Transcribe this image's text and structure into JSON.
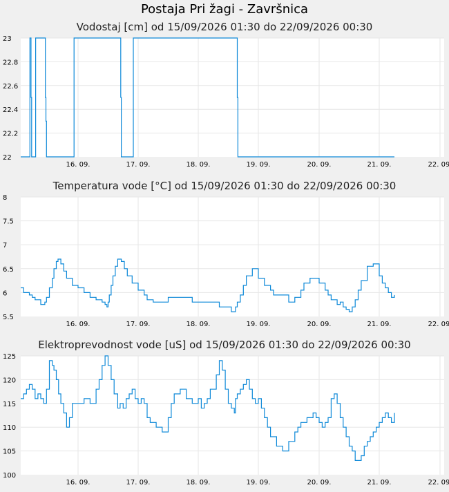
{
  "page_title": "Postaja Pri žagi - Završnica",
  "colors": {
    "series": "#0c88d8",
    "background": "#f0f0f0",
    "plot": "#ffffff",
    "grid": "#e6e6e6"
  },
  "chart_data": [
    {
      "type": "line",
      "title": "Vodostaj [cm] od 15/09/2026 01:30 do 22/09/2026 00:30",
      "x_range": [
        15.0,
        22.0
      ],
      "x_ticks": [
        16,
        17,
        18,
        19,
        20,
        21,
        22
      ],
      "x_tick_labels": [
        "16. 09.",
        "17. 09.",
        "18. 09.",
        "19. 09.",
        "20. 09.",
        "21. 09.",
        "22. 09."
      ],
      "ylim": [
        22,
        23
      ],
      "y_ticks": [
        22,
        22.2,
        22.4,
        22.6,
        22.8,
        23
      ],
      "y_tick_labels": [
        "22",
        "22.2",
        "22.4",
        "22.6",
        "22.8",
        "23"
      ],
      "grid": true,
      "series": [
        {
          "x": [
            15.0,
            15.15,
            15.16,
            15.17,
            15.18,
            15.19,
            15.2,
            15.25,
            15.26,
            15.27,
            15.4,
            15.41,
            15.43,
            15.44,
            15.45,
            15.5,
            15.92,
            15.93,
            15.95,
            15.96,
            16.7,
            16.71,
            16.72,
            16.9,
            16.91,
            16.92,
            18.62,
            18.63,
            18.65,
            18.66,
            18.67,
            18.7,
            21.25
          ],
          "y": [
            22,
            22,
            23,
            23,
            22.5,
            22,
            22,
            22,
            23,
            23,
            23,
            23,
            22.5,
            22.3,
            22,
            22,
            22,
            23,
            23,
            23,
            23,
            22.5,
            22,
            22,
            22,
            23,
            23,
            23,
            22.5,
            22,
            22,
            22,
            22
          ]
        }
      ]
    },
    {
      "type": "line",
      "title": "Temperatura vode [°C] od 15/09/2026 01:30 do 22/09/2026 00:30",
      "x_range": [
        15.0,
        22.0
      ],
      "x_ticks": [
        16,
        17,
        18,
        19,
        20,
        21,
        22
      ],
      "x_tick_labels": [
        "16. 09.",
        "17. 09.",
        "18. 09.",
        "19. 09.",
        "20. 09.",
        "21. 09.",
        "22. 09."
      ],
      "ylim": [
        5.5,
        8
      ],
      "y_ticks": [
        5.5,
        6,
        6.5,
        7,
        7.5,
        8
      ],
      "y_tick_labels": [
        "5.5",
        "6",
        "6.5",
        "7",
        "7.5",
        "8"
      ],
      "grid": true,
      "series": [
        {
          "x": [
            15.0,
            15.05,
            15.1,
            15.15,
            15.2,
            15.25,
            15.3,
            15.35,
            15.42,
            15.45,
            15.5,
            15.55,
            15.58,
            15.62,
            15.65,
            15.7,
            15.75,
            15.8,
            15.9,
            16.0,
            16.1,
            16.2,
            16.3,
            16.4,
            16.45,
            16.48,
            16.5,
            16.52,
            16.55,
            16.58,
            16.62,
            16.66,
            16.72,
            16.77,
            16.82,
            16.9,
            17.0,
            17.1,
            17.15,
            17.25,
            17.45,
            17.5,
            17.85,
            17.9,
            18.3,
            18.35,
            18.5,
            18.55,
            18.6,
            18.62,
            18.65,
            18.7,
            18.75,
            18.8,
            18.9,
            19.0,
            19.1,
            19.2,
            19.25,
            19.5,
            19.55,
            19.6,
            19.7,
            19.75,
            19.85,
            19.9,
            20.0,
            20.1,
            20.15,
            20.2,
            20.3,
            20.35,
            20.4,
            20.45,
            20.5,
            20.55,
            20.6,
            20.65,
            20.7,
            20.8,
            20.9,
            21.0,
            21.05,
            21.1,
            21.15,
            21.2,
            21.25
          ],
          "y": [
            6.1,
            6.0,
            6.0,
            5.95,
            5.9,
            5.85,
            5.85,
            5.75,
            5.8,
            5.9,
            6.1,
            6.3,
            6.5,
            6.65,
            6.7,
            6.6,
            6.45,
            6.3,
            6.15,
            6.1,
            6.0,
            5.9,
            5.85,
            5.8,
            5.75,
            5.7,
            5.8,
            5.95,
            6.15,
            6.35,
            6.55,
            6.7,
            6.65,
            6.5,
            6.35,
            6.2,
            6.05,
            5.95,
            5.85,
            5.8,
            5.8,
            5.9,
            5.9,
            5.8,
            5.8,
            5.7,
            5.7,
            5.6,
            5.6,
            5.7,
            5.8,
            5.95,
            6.15,
            6.35,
            6.5,
            6.3,
            6.15,
            6.05,
            5.95,
            5.8,
            5.8,
            5.9,
            6.05,
            6.2,
            6.3,
            6.3,
            6.2,
            6.05,
            5.95,
            5.85,
            5.75,
            5.8,
            5.7,
            5.65,
            5.6,
            5.7,
            5.85,
            6.05,
            6.25,
            6.55,
            6.6,
            6.35,
            6.2,
            6.1,
            6.0,
            5.9,
            5.95
          ]
        }
      ]
    },
    {
      "type": "line",
      "title": "Elektroprevodnost vode [uS] od 15/09/2026 01:30 do 22/09/2026 00:30",
      "x_range": [
        15.0,
        22.0
      ],
      "x_ticks": [
        16,
        17,
        18,
        19,
        20,
        21,
        22
      ],
      "x_tick_labels": [
        "16. 09.",
        "17. 09.",
        "18. 09.",
        "19. 09.",
        "20. 09.",
        "21. 09.",
        "22. 09."
      ],
      "ylim": [
        100,
        125
      ],
      "y_ticks": [
        100,
        105,
        110,
        115,
        120,
        125
      ],
      "y_tick_labels": [
        "100",
        "105",
        "110",
        "115",
        "120",
        "125"
      ],
      "grid": true,
      "series": [
        {
          "x": [
            15.0,
            15.05,
            15.1,
            15.15,
            15.2,
            15.25,
            15.3,
            15.35,
            15.4,
            15.45,
            15.5,
            15.55,
            15.58,
            15.62,
            15.66,
            15.7,
            15.75,
            15.8,
            15.85,
            15.9,
            15.95,
            16.0,
            16.1,
            16.2,
            16.3,
            16.35,
            16.4,
            16.45,
            16.5,
            16.55,
            16.6,
            16.66,
            16.7,
            16.75,
            16.8,
            16.85,
            16.9,
            16.95,
            17.0,
            17.05,
            17.1,
            17.15,
            17.2,
            17.3,
            17.4,
            17.5,
            17.55,
            17.6,
            17.7,
            17.8,
            17.9,
            18.0,
            18.05,
            18.1,
            18.15,
            18.2,
            18.3,
            18.35,
            18.4,
            18.45,
            18.5,
            18.55,
            18.6,
            18.62,
            18.65,
            18.7,
            18.75,
            18.8,
            18.85,
            18.9,
            18.95,
            19.0,
            19.05,
            19.1,
            19.15,
            19.2,
            19.3,
            19.4,
            19.5,
            19.6,
            19.65,
            19.7,
            19.8,
            19.9,
            19.95,
            20.0,
            20.05,
            20.1,
            20.15,
            20.2,
            20.25,
            20.3,
            20.35,
            20.4,
            20.45,
            20.5,
            20.55,
            20.6,
            20.65,
            20.7,
            20.75,
            20.8,
            20.85,
            20.9,
            20.95,
            21.0,
            21.05,
            21.1,
            21.15,
            21.2,
            21.25
          ],
          "y": [
            116,
            117,
            118,
            119,
            118,
            116,
            117,
            116,
            115,
            118,
            124,
            123,
            122,
            120,
            117,
            115,
            113,
            110,
            112,
            115,
            115,
            115,
            116,
            115,
            118,
            120,
            123,
            125,
            123,
            120,
            117,
            114,
            115,
            114,
            116,
            117,
            118,
            116,
            115,
            116,
            115,
            112,
            111,
            110,
            109,
            112,
            115,
            117,
            118,
            116,
            115,
            116,
            114,
            115,
            116,
            118,
            121,
            124,
            122,
            118,
            115,
            114,
            113,
            116,
            117,
            118,
            119,
            120,
            118,
            116,
            115,
            116,
            114,
            112,
            110,
            108,
            106,
            105,
            107,
            109,
            110,
            111,
            112,
            113,
            112,
            111,
            110,
            111,
            112,
            116,
            117,
            115,
            112,
            110,
            108,
            106,
            105,
            103,
            103,
            104,
            106,
            107,
            108,
            109,
            110,
            111,
            112,
            113,
            112,
            111,
            113
          ],
          "note": ""
        }
      ]
    }
  ]
}
